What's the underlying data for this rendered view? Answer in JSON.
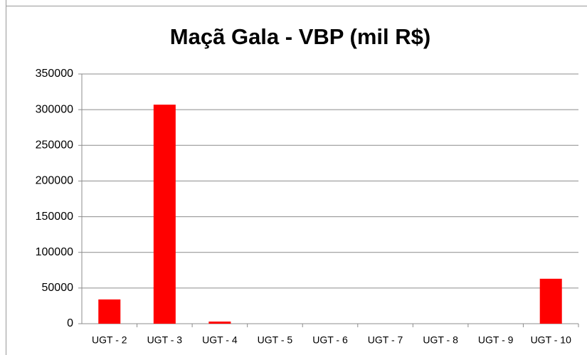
{
  "chart_data": {
    "type": "bar",
    "title": "Maçã Gala - VBP (mil R$)",
    "categories": [
      "UGT - 2",
      "UGT - 3",
      "UGT - 4",
      "UGT - 5",
      "UGT - 6",
      "UGT - 7",
      "UGT - 8",
      "UGT - 9",
      "UGT - 10"
    ],
    "values": [
      34000,
      307000,
      3000,
      0,
      0,
      0,
      0,
      0,
      63000
    ],
    "color": "#ff0000",
    "ylim": [
      0,
      350000
    ],
    "yticks": [
      0,
      50000,
      100000,
      150000,
      200000,
      250000,
      300000,
      350000
    ],
    "grid": true
  }
}
